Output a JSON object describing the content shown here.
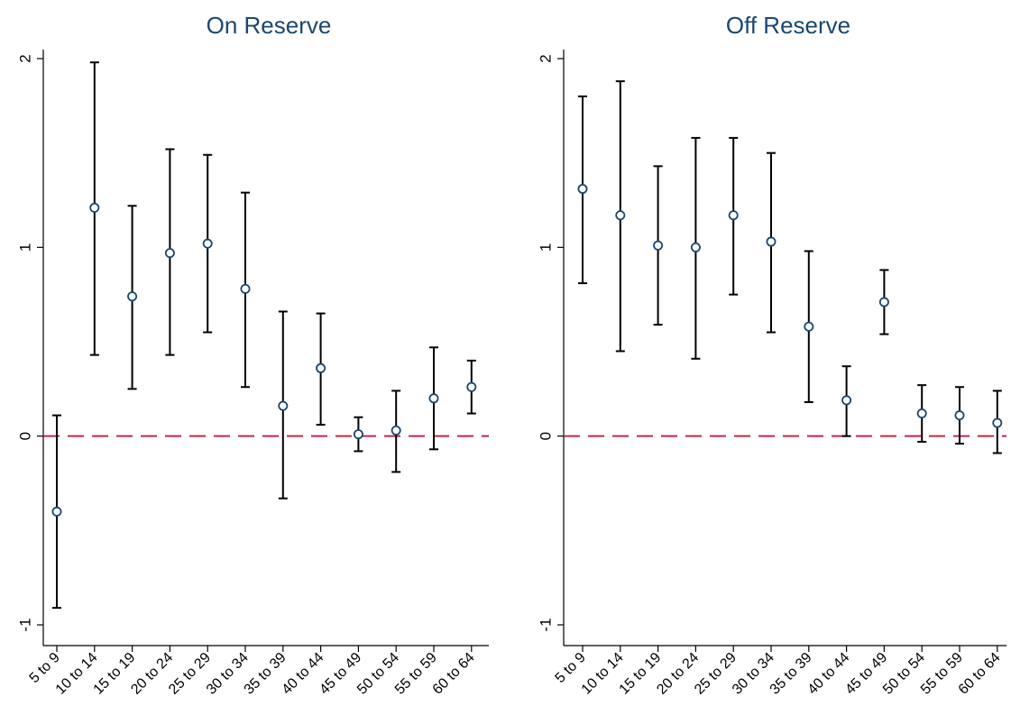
{
  "chart_data": [
    {
      "type": "scatter",
      "title": "On Reserve",
      "xlabel": "",
      "ylabel": "",
      "ylim": [
        -1,
        2
      ],
      "yticks": [
        -1,
        0,
        1,
        2
      ],
      "reference_line": {
        "y": 0,
        "style": "dashed",
        "color": "#c0294b"
      },
      "marker_color": "#1a476f",
      "errorbar_color": "#000000",
      "grid": false,
      "categories": [
        "5 to 9",
        "10 to 14",
        "15 to 19",
        "20 to 24",
        "25 to 29",
        "30 to 34",
        "35 to 39",
        "40 to 44",
        "45 to 49",
        "50 to 54",
        "55 to 59",
        "60 to 64"
      ],
      "values": [
        -0.4,
        1.21,
        0.74,
        0.97,
        1.02,
        0.78,
        0.16,
        0.36,
        0.01,
        0.03,
        0.2,
        0.26
      ],
      "lower": [
        -0.91,
        0.43,
        0.25,
        0.43,
        0.55,
        0.26,
        -0.33,
        0.06,
        -0.08,
        -0.19,
        -0.07,
        0.12
      ],
      "upper": [
        0.11,
        1.98,
        1.22,
        1.52,
        1.49,
        1.29,
        0.66,
        0.65,
        0.1,
        0.24,
        0.47,
        0.4
      ]
    },
    {
      "type": "scatter",
      "title": "Off Reserve",
      "xlabel": "",
      "ylabel": "",
      "ylim": [
        -1,
        2
      ],
      "yticks": [
        -1,
        0,
        1,
        2
      ],
      "reference_line": {
        "y": 0,
        "style": "dashed",
        "color": "#c0294b"
      },
      "marker_color": "#1a476f",
      "errorbar_color": "#000000",
      "grid": false,
      "categories": [
        "5 to 9",
        "10 to 14",
        "15 to 19",
        "20 to 24",
        "25 to 29",
        "30 to 34",
        "35 to 39",
        "40 to 44",
        "45 to 49",
        "50 to 54",
        "55 to 59",
        "60 to 64"
      ],
      "values": [
        1.31,
        1.17,
        1.01,
        1.0,
        1.17,
        1.03,
        0.58,
        0.19,
        0.71,
        0.12,
        0.11,
        0.07
      ],
      "lower": [
        0.81,
        0.45,
        0.59,
        0.41,
        0.75,
        0.55,
        0.18,
        0.0,
        0.54,
        -0.03,
        -0.04,
        -0.09
      ],
      "upper": [
        1.8,
        1.88,
        1.43,
        1.58,
        1.58,
        1.5,
        0.98,
        0.37,
        0.88,
        0.27,
        0.26,
        0.24
      ]
    }
  ]
}
